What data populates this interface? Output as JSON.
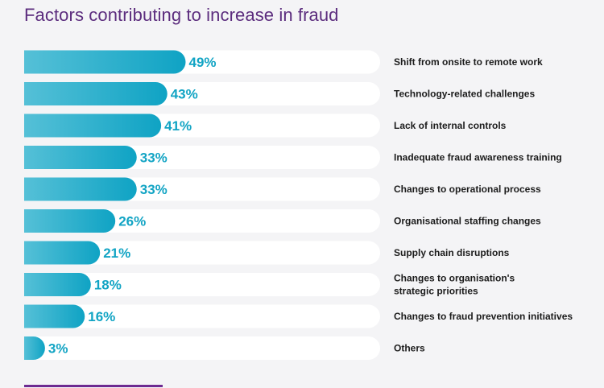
{
  "chart_data": {
    "type": "bar",
    "orientation": "horizontal",
    "title": "Factors contributing to increase in fraud",
    "categories": [
      "Shift from onsite to remote work",
      "Technology-related challenges",
      "Lack of internal controls",
      "Inadequate fraud awareness training",
      "Changes to operational process",
      "Organisational staffing changes",
      "Supply chain disruptions",
      [
        "Changes to organisation's",
        "strategic priorities"
      ],
      "Changes to fraud prevention initiatives",
      "Others"
    ],
    "values": [
      49,
      43,
      41,
      33,
      33,
      26,
      21,
      18,
      16,
      3
    ],
    "value_labels": [
      "49%",
      "43%",
      "41%",
      "33%",
      "33%",
      "26%",
      "21%",
      "18%",
      "16%",
      "3%"
    ],
    "xlim": [
      0,
      100
    ],
    "grid": false,
    "legend": "none",
    "colors": {
      "bar_start": "#55c0d7",
      "bar_end": "#0fa3c4",
      "track": "#ffffff",
      "value_text": "#12a4c4",
      "label_text": "#1c1c1c",
      "title": "#5c2d7e"
    }
  }
}
